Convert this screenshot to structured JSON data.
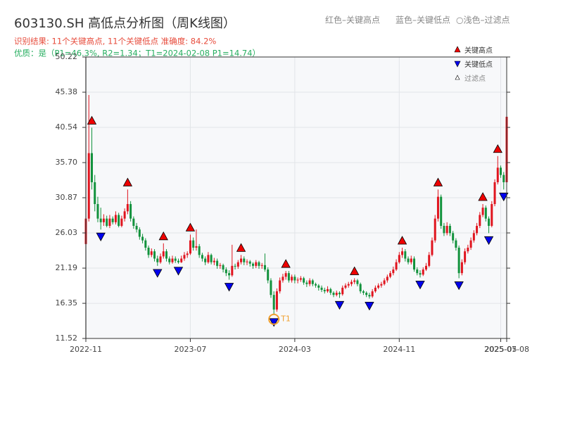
{
  "chart_data": {
    "type": "candlestick",
    "title": "603130.SH 高低点分析图（周K线图）",
    "header_legend": [
      "红色–关键高点",
      "蓝色–关键低点",
      "○浅色–过滤点"
    ],
    "result_text": "识别结果: 11个关键高点, 11个关键低点  准确度: 84.2%",
    "quality_text": "优质：是（P1=46.3%, R2=1.34；T1=2024-02-08 P1=14.74）",
    "legend": [
      "关键高点",
      "关键低点",
      "过滤点"
    ],
    "up_color": "#e0141e",
    "down_color": "#12923c",
    "grid": true,
    "ylim": [
      11.52,
      50.22
    ],
    "yticks": [
      11.52,
      16.35,
      21.19,
      26.03,
      30.87,
      {
        "value": 35.7,
        "label": "35.70"
      },
      40.54,
      45.38,
      50.22
    ],
    "categories": [
      "2022-11",
      null,
      null,
      null,
      null,
      null,
      null,
      null,
      null,
      null,
      null,
      null,
      null,
      null,
      null,
      null,
      null,
      null,
      null,
      null,
      null,
      null,
      null,
      null,
      null,
      null,
      null,
      null,
      null,
      null,
      null,
      null,
      null,
      null,
      null,
      "2023-07",
      null,
      null,
      null,
      null,
      null,
      null,
      null,
      null,
      null,
      null,
      null,
      null,
      null,
      null,
      null,
      null,
      null,
      null,
      null,
      null,
      null,
      null,
      null,
      null,
      null,
      null,
      null,
      null,
      null,
      null,
      null,
      null,
      null,
      null,
      "2024-03",
      null,
      null,
      null,
      null,
      null,
      null,
      null,
      null,
      null,
      null,
      null,
      null,
      null,
      null,
      null,
      null,
      null,
      null,
      null,
      null,
      null,
      null,
      null,
      null,
      null,
      null,
      null,
      null,
      null,
      null,
      null,
      null,
      null,
      null,
      "2024-11",
      null,
      null,
      null,
      null,
      null,
      null,
      null,
      null,
      null,
      null,
      null,
      null,
      null,
      null,
      null,
      null,
      null,
      null,
      null,
      null,
      null,
      null,
      null,
      null,
      null,
      null,
      null,
      null,
      null,
      null,
      null,
      null,
      null,
      "2025-05",
      null,
      "2025-07-08"
    ],
    "candles": [
      [
        24.5,
        28.5,
        23.8,
        28
      ],
      [
        28,
        45,
        27.6,
        37
      ],
      [
        37,
        40.5,
        32,
        33
      ],
      [
        33,
        34,
        29,
        30
      ],
      [
        30,
        31,
        27.5,
        28
      ],
      [
        28,
        29.5,
        26.5,
        27.5
      ],
      [
        27.5,
        28.6,
        27,
        28
      ],
      [
        28,
        28.4,
        26.8,
        27
      ],
      [
        27,
        28.5,
        26.7,
        28
      ],
      [
        28,
        28.3,
        27.2,
        27.5
      ],
      [
        27.5,
        29,
        27.2,
        28.5
      ],
      [
        28.5,
        28.8,
        26.8,
        27
      ],
      [
        27,
        28.4,
        26.8,
        28
      ],
      [
        28,
        29.4,
        27.6,
        29
      ],
      [
        29,
        32,
        28.6,
        30
      ],
      [
        30,
        30.4,
        27.6,
        28
      ],
      [
        28,
        28.3,
        26.6,
        27
      ],
      [
        27,
        27.4,
        26.1,
        26.5
      ],
      [
        26.5,
        26.8,
        25.1,
        25.5
      ],
      [
        25.5,
        25.9,
        24.6,
        25
      ],
      [
        25,
        25.3,
        23.6,
        24
      ],
      [
        24,
        24.3,
        22.6,
        23
      ],
      [
        23,
        23.9,
        22.7,
        23.5
      ],
      [
        23.5,
        23.8,
        22.1,
        22.5
      ],
      [
        22.5,
        22.9,
        21.5,
        22
      ],
      [
        22,
        23.2,
        21.8,
        22.8
      ],
      [
        22.8,
        24.6,
        22.5,
        23.5
      ],
      [
        23.5,
        23.8,
        22.1,
        22.5
      ],
      [
        22.5,
        22.8,
        21.7,
        22
      ],
      [
        22,
        22.9,
        21.8,
        22.5
      ],
      [
        22.5,
        22.8,
        21.9,
        22.2
      ],
      [
        22.2,
        22.5,
        21.8,
        22
      ],
      [
        22,
        22.9,
        21.9,
        22.5
      ],
      [
        22.5,
        23.4,
        22.2,
        23
      ],
      [
        23,
        23.5,
        22.6,
        23.2
      ],
      [
        23.2,
        25.8,
        23,
        25
      ],
      [
        25,
        25.4,
        23.6,
        24
      ],
      [
        24,
        26.5,
        23.6,
        24.2
      ],
      [
        24.2,
        24.5,
        22.6,
        23
      ],
      [
        23,
        23.3,
        22.1,
        22.5
      ],
      [
        22.5,
        22.8,
        21.6,
        22
      ],
      [
        22,
        23.4,
        21.8,
        23
      ],
      [
        23,
        23.2,
        21.7,
        22
      ],
      [
        22,
        22.6,
        21.6,
        22.2
      ],
      [
        22.2,
        22.5,
        21.1,
        21.5
      ],
      [
        21.5,
        21.9,
        21.1,
        21.6
      ],
      [
        21.6,
        21.8,
        20.6,
        21
      ],
      [
        21,
        21.3,
        20.1,
        20.5
      ],
      [
        20.5,
        20.9,
        19.6,
        20.2
      ],
      [
        20.2,
        24.4,
        20,
        21.5
      ],
      [
        21.5,
        21.8,
        21,
        21.4
      ],
      [
        21.4,
        22.3,
        21.1,
        22
      ],
      [
        22,
        23,
        21.7,
        22.5
      ],
      [
        22.5,
        22.8,
        21.6,
        22
      ],
      [
        22,
        22.4,
        21.6,
        22.1
      ],
      [
        22.1,
        22.3,
        21.4,
        21.8
      ],
      [
        21.8,
        22,
        21.1,
        21.5
      ],
      [
        21.5,
        22.3,
        21.2,
        22
      ],
      [
        22,
        22.2,
        21.1,
        21.5
      ],
      [
        21.5,
        21.9,
        21.1,
        21.6
      ],
      [
        21.6,
        23.2,
        20.7,
        21
      ],
      [
        21,
        21.3,
        19.1,
        19.5
      ],
      [
        19.5,
        19.8,
        17.1,
        17.5
      ],
      [
        17.5,
        18,
        14.74,
        15.5
      ],
      [
        15.5,
        18.4,
        15.2,
        18
      ],
      [
        18,
        19.9,
        17.7,
        19.5
      ],
      [
        19.5,
        20.4,
        19.2,
        20
      ],
      [
        20,
        20.8,
        19.6,
        20.5
      ],
      [
        20.5,
        20.8,
        19.2,
        19.5
      ],
      [
        19.5,
        20.3,
        19.2,
        20
      ],
      [
        20,
        20.3,
        19.1,
        19.5
      ],
      [
        19.5,
        19.9,
        19.1,
        19.6
      ],
      [
        19.6,
        20.1,
        19.3,
        19.8
      ],
      [
        19.8,
        20,
        18.9,
        19.2
      ],
      [
        19.2,
        19.5,
        18.6,
        19
      ],
      [
        19,
        19.8,
        18.7,
        19.5
      ],
      [
        19.5,
        19.7,
        18.7,
        19
      ],
      [
        19,
        19.2,
        18.5,
        18.8
      ],
      [
        18.8,
        19,
        18.1,
        18.5
      ],
      [
        18.5,
        18.8,
        17.9,
        18.2
      ],
      [
        18.2,
        18.5,
        17.7,
        18
      ],
      [
        18,
        18.7,
        17.8,
        18.3
      ],
      [
        18.3,
        18.5,
        17.5,
        17.8
      ],
      [
        17.8,
        18,
        17.2,
        17.5
      ],
      [
        17.5,
        18.1,
        17.3,
        17.8
      ],
      [
        17.8,
        18,
        17.1,
        17.6
      ],
      [
        17.6,
        18.8,
        17.4,
        18.5
      ],
      [
        18.5,
        19.1,
        18.3,
        18.8
      ],
      [
        18.8,
        19.3,
        18.5,
        19
      ],
      [
        19,
        19.6,
        18.7,
        19.3
      ],
      [
        19.3,
        19.8,
        19,
        19.5
      ],
      [
        19.5,
        19.7,
        18.7,
        19
      ],
      [
        19,
        19.2,
        17.7,
        18
      ],
      [
        18,
        18.2,
        17.5,
        17.8
      ],
      [
        17.8,
        18,
        17.2,
        17.5
      ],
      [
        17.5,
        17.8,
        17,
        17.3
      ],
      [
        17.3,
        18.3,
        17.1,
        18
      ],
      [
        18,
        18.8,
        17.8,
        18.5
      ],
      [
        18.5,
        19.1,
        18.3,
        18.8
      ],
      [
        18.8,
        19.3,
        18.5,
        19
      ],
      [
        19,
        19.8,
        18.8,
        19.5
      ],
      [
        19.5,
        20.3,
        19.2,
        20
      ],
      [
        20,
        20.8,
        19.8,
        20.5
      ],
      [
        20.5,
        21.4,
        20.2,
        21
      ],
      [
        21,
        22.4,
        20.8,
        22
      ],
      [
        22,
        23.4,
        21.8,
        23
      ],
      [
        23,
        24,
        22.6,
        23.5
      ],
      [
        23.5,
        23.8,
        22.1,
        22.5
      ],
      [
        22.5,
        22.8,
        21.7,
        22
      ],
      [
        22,
        22.9,
        21.7,
        22.5
      ],
      [
        22.5,
        22.8,
        20.7,
        21
      ],
      [
        21,
        21.3,
        20.2,
        20.5
      ],
      [
        20.5,
        20.9,
        19.9,
        20.3
      ],
      [
        20.3,
        21.3,
        20.1,
        21
      ],
      [
        21,
        21.9,
        20.8,
        21.5
      ],
      [
        21.5,
        23.4,
        21.3,
        23
      ],
      [
        23,
        25.4,
        22.8,
        25
      ],
      [
        25,
        28.5,
        24.7,
        28
      ],
      [
        28,
        32,
        27.6,
        31
      ],
      [
        31,
        31.3,
        26.6,
        27
      ],
      [
        27,
        27.4,
        25.6,
        26
      ],
      [
        26,
        27.5,
        25.7,
        27
      ],
      [
        27,
        27.3,
        25.6,
        26
      ],
      [
        26,
        26.3,
        24.6,
        25
      ],
      [
        25,
        25.3,
        23.6,
        24
      ],
      [
        24,
        24.3,
        19.8,
        20.5
      ],
      [
        20.5,
        22.4,
        20.2,
        22
      ],
      [
        22,
        23.9,
        21.7,
        23.5
      ],
      [
        23.5,
        24.4,
        23.2,
        24
      ],
      [
        24,
        25.4,
        23.7,
        25
      ],
      [
        25,
        26.4,
        24.7,
        26
      ],
      [
        26,
        27.4,
        25.7,
        27
      ],
      [
        27,
        28.9,
        26.7,
        28.5
      ],
      [
        28.5,
        30,
        28.2,
        29.5
      ],
      [
        29.5,
        29.8,
        27.6,
        28
      ],
      [
        28,
        28.3,
        26,
        27
      ],
      [
        27,
        30.4,
        26.8,
        30
      ],
      [
        30,
        33.4,
        29.7,
        33
      ],
      [
        33,
        36.6,
        32.7,
        35
      ],
      [
        35,
        35.3,
        33.6,
        34
      ],
      [
        34,
        34.4,
        32,
        33
      ],
      [
        33,
        47,
        32.8,
        42
      ]
    ],
    "series": [
      {
        "name": "关键高点",
        "color": "#ee0000",
        "marker": "up",
        "values": [
          null,
          null,
          40.5,
          null,
          null,
          null,
          null,
          null,
          null,
          null,
          null,
          null,
          null,
          null,
          32,
          null,
          null,
          null,
          null,
          null,
          null,
          null,
          null,
          null,
          null,
          null,
          24.6,
          null,
          null,
          null,
          null,
          null,
          null,
          null,
          null,
          25.8,
          null,
          null,
          null,
          null,
          null,
          null,
          null,
          null,
          null,
          null,
          null,
          null,
          null,
          null,
          null,
          null,
          23,
          null,
          null,
          null,
          null,
          null,
          null,
          null,
          null,
          null,
          null,
          null,
          null,
          null,
          null,
          20.8,
          null,
          null,
          null,
          null,
          null,
          null,
          null,
          null,
          null,
          null,
          null,
          null,
          null,
          null,
          null,
          null,
          null,
          null,
          null,
          null,
          null,
          null,
          19.8,
          null,
          null,
          null,
          null,
          null,
          null,
          null,
          null,
          null,
          null,
          null,
          null,
          null,
          null,
          null,
          24,
          null,
          null,
          null,
          null,
          null,
          null,
          null,
          null,
          null,
          null,
          null,
          32,
          null,
          null,
          null,
          null,
          null,
          null,
          null,
          null,
          null,
          null,
          null,
          null,
          null,
          null,
          30,
          null,
          null,
          null,
          null,
          36.6,
          null,
          null,
          null
        ]
      },
      {
        "name": "关键低点",
        "color": "#0000ee",
        "marker": "down",
        "values": [
          null,
          null,
          null,
          null,
          null,
          26.5,
          null,
          null,
          null,
          null,
          null,
          null,
          null,
          null,
          null,
          null,
          null,
          null,
          null,
          null,
          null,
          null,
          null,
          null,
          21.5,
          null,
          null,
          null,
          null,
          null,
          null,
          21.8,
          null,
          null,
          null,
          null,
          null,
          null,
          null,
          null,
          null,
          null,
          null,
          null,
          null,
          null,
          null,
          null,
          19.6,
          null,
          null,
          null,
          null,
          null,
          null,
          null,
          null,
          null,
          null,
          null,
          null,
          null,
          null,
          14.74,
          null,
          null,
          null,
          null,
          null,
          null,
          null,
          null,
          null,
          null,
          null,
          null,
          null,
          null,
          null,
          null,
          null,
          null,
          null,
          null,
          null,
          17.1,
          null,
          null,
          null,
          null,
          null,
          null,
          null,
          null,
          null,
          17,
          null,
          null,
          null,
          null,
          null,
          null,
          null,
          null,
          null,
          null,
          null,
          null,
          null,
          null,
          null,
          null,
          19.9,
          null,
          null,
          null,
          null,
          null,
          null,
          null,
          null,
          null,
          null,
          null,
          null,
          19.8,
          null,
          null,
          null,
          null,
          null,
          null,
          null,
          null,
          null,
          26,
          null,
          null,
          null,
          null,
          32,
          null
        ]
      }
    ],
    "annotation": {
      "text": "T1",
      "value": 14.74,
      "color": "#f0a030"
    }
  }
}
